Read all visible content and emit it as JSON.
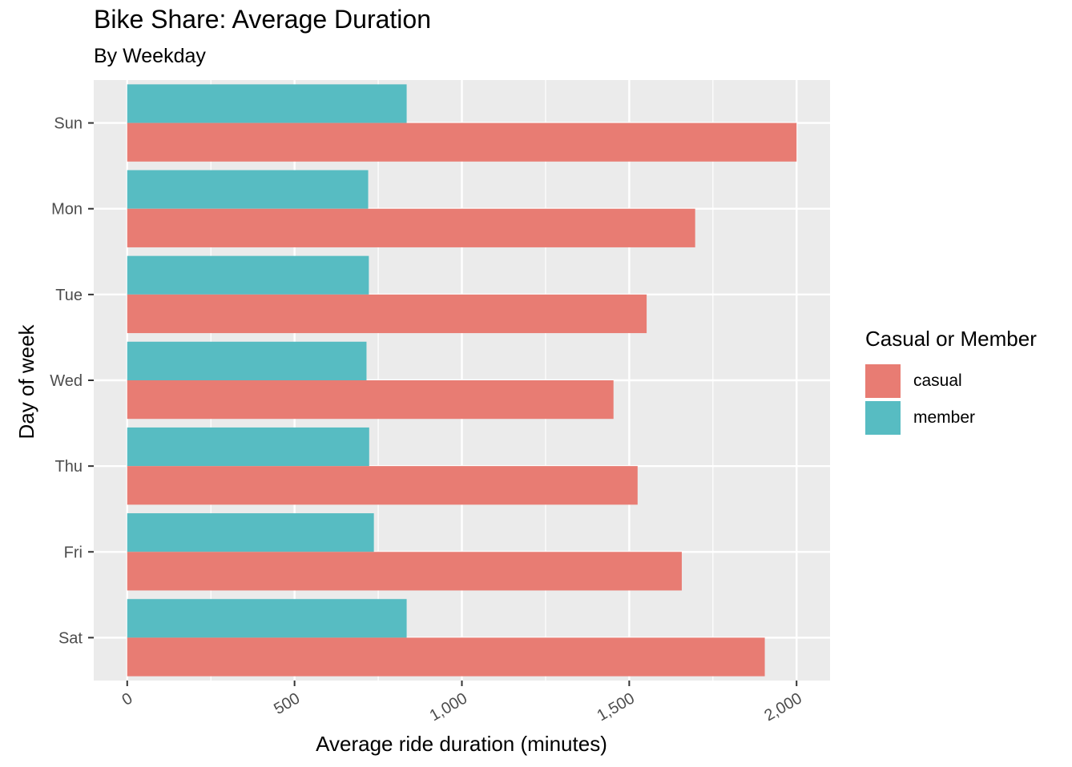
{
  "chart_data": {
    "type": "bar",
    "orientation": "horizontal",
    "title": "Bike Share: Average Duration",
    "subtitle": "By Weekday",
    "xlabel": "Average ride duration (minutes)",
    "ylabel": "Day of week",
    "categories": [
      "Sun",
      "Mon",
      "Tue",
      "Wed",
      "Thu",
      "Fri",
      "Sat"
    ],
    "series": [
      {
        "name": "casual",
        "color": "#E87C73",
        "values": [
          2000,
          1697,
          1552,
          1453,
          1525,
          1657,
          1905
        ]
      },
      {
        "name": "member",
        "color": "#57BCC2",
        "values": [
          835,
          720,
          722,
          715,
          723,
          737,
          835
        ]
      }
    ],
    "xlim": [
      -100,
      2100
    ],
    "xticks": [
      0,
      500,
      1000,
      1500,
      2000
    ],
    "xtick_labels": [
      "0",
      "500",
      "1,000",
      "1,500",
      "2,000"
    ],
    "grid": true,
    "legend": {
      "title": "Casual or Member",
      "position": "right"
    }
  }
}
